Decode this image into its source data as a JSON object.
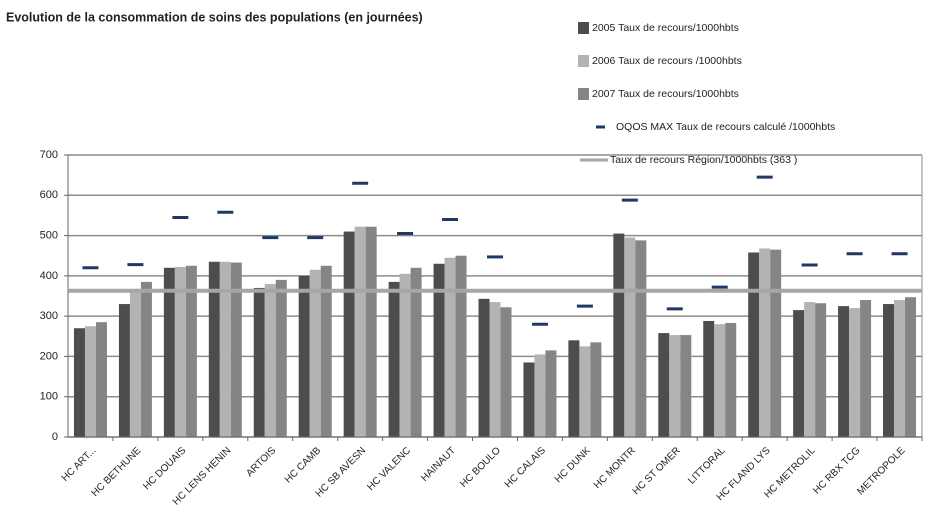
{
  "chart_data": {
    "type": "bar",
    "title": "Evolution de la consommation de soins des populations (en journées)",
    "categories": [
      "HC ART...",
      "HC BETHUNE",
      "HC DOUAIS",
      "HC LENS HENIN",
      "ARTOIS",
      "HC CAMB",
      "HC SB AVESN",
      "HC VALENC",
      "HAINAUT",
      "HC BOULO",
      "HC CALAIS",
      "HC DUNK",
      "HC MONTR",
      "HC ST OMER",
      "LITTORAL",
      "HC FLAND LYS",
      "HC METROLIL",
      "HC RBX TCG",
      "METROPOLE"
    ],
    "series": [
      {
        "name": "2005 Taux de recours/1000hbts",
        "color": "#4d4d4d",
        "values": [
          270,
          330,
          420,
          435,
          370,
          400,
          510,
          385,
          430,
          343,
          185,
          240,
          505,
          258,
          288,
          458,
          315,
          325,
          330
        ]
      },
      {
        "name": "2006 Taux de recours  /1000hbts",
        "color": "#b3b3b3",
        "values": [
          275,
          360,
          422,
          435,
          380,
          415,
          522,
          405,
          445,
          335,
          205,
          225,
          495,
          253,
          280,
          468,
          335,
          320,
          340
        ]
      },
      {
        "name": "2007 Taux de recours/1000hbts",
        "color": "#858585",
        "values": [
          285,
          385,
          425,
          433,
          390,
          425,
          522,
          420,
          450,
          322,
          215,
          235,
          488,
          253,
          283,
          465,
          332,
          340,
          347
        ]
      },
      {
        "name": "OQOS MAX Taux de recours calculé /1000hbts",
        "color": "#1f3864",
        "marker": "dash",
        "values": [
          420,
          428,
          545,
          558,
          495,
          495,
          630,
          505,
          540,
          447,
          280,
          325,
          588,
          318,
          372,
          645,
          427,
          455,
          455
        ]
      }
    ],
    "reference_line": {
      "name": "Taux de recours Région/1000hbts (363 )",
      "value": 363,
      "color": "#a6a6a6"
    },
    "ylim": [
      0,
      700
    ],
    "yticks": [
      0,
      100,
      200,
      300,
      400,
      500,
      600,
      700
    ],
    "grid": true
  }
}
